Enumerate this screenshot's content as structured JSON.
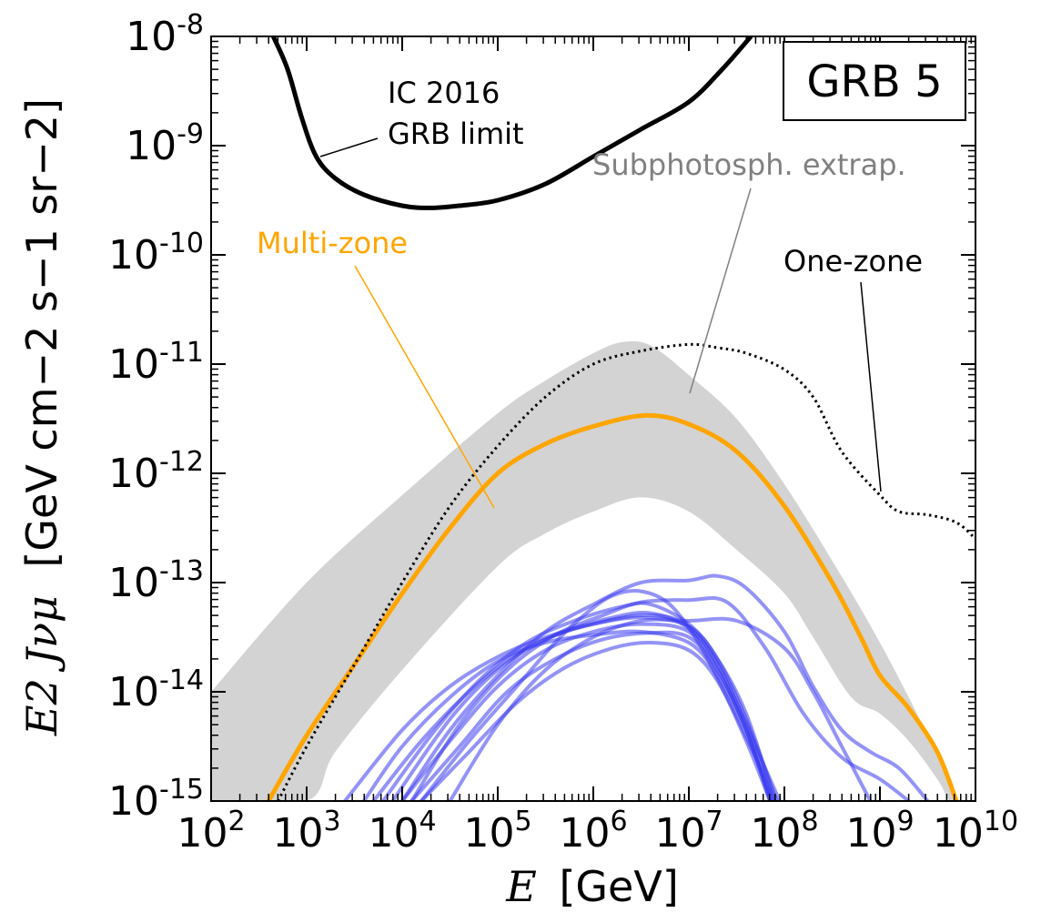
{
  "chart_data": {
    "type": "line",
    "title": "",
    "badge": "GRB 5",
    "xlabel_var": "E",
    "xlabel_unit": "[GeV]",
    "ylabel_var": "E2 Jνμ",
    "ylabel_unit": "[GeV cm−2 s−1 sr−2]",
    "x_scale": "log",
    "y_scale": "log",
    "xlim": [
      100,
      10000000000
    ],
    "ylim": [
      1e-15,
      1e-08
    ],
    "x_ticks": [
      {
        "base": "10",
        "exp": "2",
        "value": 100
      },
      {
        "base": "10",
        "exp": "3",
        "value": 1000
      },
      {
        "base": "10",
        "exp": "4",
        "value": 10000
      },
      {
        "base": "10",
        "exp": "5",
        "value": 100000
      },
      {
        "base": "10",
        "exp": "6",
        "value": 1000000
      },
      {
        "base": "10",
        "exp": "7",
        "value": 10000000
      },
      {
        "base": "10",
        "exp": "8",
        "value": 100000000
      },
      {
        "base": "10",
        "exp": "9",
        "value": 1000000000
      },
      {
        "base": "10",
        "exp": "10",
        "value": 10000000000
      }
    ],
    "y_ticks": [
      {
        "base": "10",
        "exp": "-8",
        "value": 1e-08
      },
      {
        "base": "10",
        "exp": "-9",
        "value": 1e-09
      },
      {
        "base": "10",
        "exp": "-10",
        "value": 1e-10
      },
      {
        "base": "10",
        "exp": "-11",
        "value": 1e-11
      },
      {
        "base": "10",
        "exp": "-12",
        "value": 1e-12
      },
      {
        "base": "10",
        "exp": "-13",
        "value": 1e-13
      },
      {
        "base": "10",
        "exp": "-14",
        "value": 1e-14
      },
      {
        "base": "10",
        "exp": "-15",
        "value": 1e-15
      }
    ],
    "band": {
      "name": "Subphotosph. extrap.",
      "color": "#d3d3d3",
      "upper": [
        [
          2,
          -14.0
        ],
        [
          3,
          -13.0
        ],
        [
          4,
          -12.2
        ],
        [
          5,
          -11.45
        ],
        [
          5.5,
          -11.15
        ],
        [
          6,
          -10.9
        ],
        [
          6.3,
          -10.8
        ],
        [
          6.6,
          -10.83
        ],
        [
          7,
          -11.1
        ],
        [
          7.5,
          -11.5
        ],
        [
          8,
          -12.1
        ],
        [
          8.5,
          -12.8
        ],
        [
          9,
          -13.55
        ],
        [
          9.5,
          -14.4
        ],
        [
          9.8,
          -15.0
        ]
      ],
      "lower": [
        [
          2,
          -15.0
        ],
        [
          3,
          -15.0
        ],
        [
          3.3,
          -14.55
        ],
        [
          4,
          -13.8
        ],
        [
          5,
          -12.85
        ],
        [
          5.5,
          -12.55
        ],
        [
          6,
          -12.35
        ],
        [
          6.5,
          -12.22
        ],
        [
          7,
          -12.35
        ],
        [
          7.5,
          -12.7
        ],
        [
          8,
          -13.1
        ],
        [
          8.3,
          -13.5
        ],
        [
          8.7,
          -14.05
        ],
        [
          9,
          -14.2
        ],
        [
          9.3,
          -14.45
        ],
        [
          9.6,
          -14.8
        ],
        [
          9.72,
          -15.0
        ]
      ]
    },
    "series": [
      {
        "name": "IC 2016 GRB limit",
        "color": "#000000",
        "style": "solid",
        "width": 5,
        "points": [
          [
            2.65,
            -8.0
          ],
          [
            2.8,
            -8.3
          ],
          [
            2.95,
            -8.75
          ],
          [
            3.1,
            -9.1
          ],
          [
            3.3,
            -9.3
          ],
          [
            3.6,
            -9.45
          ],
          [
            4,
            -9.55
          ],
          [
            4.3,
            -9.57
          ],
          [
            4.6,
            -9.55
          ],
          [
            5,
            -9.5
          ],
          [
            5.5,
            -9.35
          ],
          [
            6,
            -9.1
          ],
          [
            6.5,
            -8.85
          ],
          [
            7,
            -8.6
          ],
          [
            7.35,
            -8.3
          ],
          [
            7.65,
            -8.0
          ]
        ]
      },
      {
        "name": "Multi-zone",
        "color": "#ffa500",
        "style": "solid",
        "width": 5,
        "points": [
          [
            2.6,
            -15.0
          ],
          [
            3,
            -14.4
          ],
          [
            3.5,
            -13.75
          ],
          [
            4,
            -13.1
          ],
          [
            4.5,
            -12.5
          ],
          [
            5,
            -12.0
          ],
          [
            5.5,
            -11.73
          ],
          [
            6,
            -11.57
          ],
          [
            6.55,
            -11.47
          ],
          [
            7,
            -11.55
          ],
          [
            7.5,
            -11.8
          ],
          [
            8,
            -12.3
          ],
          [
            8.5,
            -13.0
          ],
          [
            8.8,
            -13.5
          ],
          [
            9,
            -13.85
          ],
          [
            9.3,
            -14.15
          ],
          [
            9.6,
            -14.55
          ],
          [
            9.8,
            -15.0
          ]
        ]
      },
      {
        "name": "One-zone",
        "color": "#000000",
        "style": "dotted",
        "width": 3,
        "points": [
          [
            2.7,
            -15.0
          ],
          [
            3,
            -14.5
          ],
          [
            3.5,
            -13.75
          ],
          [
            4,
            -13.0
          ],
          [
            4.5,
            -12.3
          ],
          [
            5,
            -11.75
          ],
          [
            5.5,
            -11.3
          ],
          [
            6,
            -11.0
          ],
          [
            6.5,
            -10.88
          ],
          [
            7,
            -10.82
          ],
          [
            7.3,
            -10.85
          ],
          [
            7.6,
            -10.9
          ],
          [
            8,
            -11.05
          ],
          [
            8.3,
            -11.3
          ],
          [
            8.6,
            -11.8
          ],
          [
            9,
            -12.2
          ],
          [
            9.2,
            -12.35
          ],
          [
            9.5,
            -12.38
          ],
          [
            9.8,
            -12.45
          ],
          [
            10,
            -12.6
          ]
        ]
      }
    ],
    "blue_curves": {
      "color": "#3b3bf0",
      "opacity": 0.55,
      "width": 4,
      "curves": [
        [
          [
            3.4,
            -15.0
          ],
          [
            4,
            -14.35
          ],
          [
            4.5,
            -13.95
          ],
          [
            5,
            -13.68
          ],
          [
            5.5,
            -13.5
          ],
          [
            6,
            -13.38
          ],
          [
            6.5,
            -13.32
          ],
          [
            7,
            -13.4
          ],
          [
            7.3,
            -13.7
          ],
          [
            7.6,
            -14.2
          ],
          [
            7.9,
            -15.0
          ]
        ],
        [
          [
            3.6,
            -15.0
          ],
          [
            4,
            -14.5
          ],
          [
            4.5,
            -14.05
          ],
          [
            5,
            -13.72
          ],
          [
            5.5,
            -13.55
          ],
          [
            6,
            -13.48
          ],
          [
            6.5,
            -13.45
          ],
          [
            7,
            -13.55
          ],
          [
            7.3,
            -13.85
          ],
          [
            7.6,
            -14.35
          ],
          [
            7.85,
            -15.0
          ]
        ],
        [
          [
            3.7,
            -15.0
          ],
          [
            4.2,
            -14.45
          ],
          [
            4.7,
            -14.0
          ],
          [
            5.2,
            -13.65
          ],
          [
            5.7,
            -13.45
          ],
          [
            6.2,
            -13.32
          ],
          [
            6.6,
            -13.28
          ],
          [
            7,
            -13.42
          ],
          [
            7.3,
            -13.75
          ],
          [
            7.6,
            -14.3
          ],
          [
            7.88,
            -15.0
          ]
        ],
        [
          [
            3.8,
            -15.0
          ],
          [
            4.3,
            -14.4
          ],
          [
            4.8,
            -13.9
          ],
          [
            5.3,
            -13.55
          ],
          [
            5.8,
            -13.35
          ],
          [
            6.3,
            -13.22
          ],
          [
            6.6,
            -13.2
          ],
          [
            7,
            -13.38
          ],
          [
            7.3,
            -13.7
          ],
          [
            7.6,
            -14.25
          ],
          [
            7.92,
            -15.0
          ]
        ],
        [
          [
            3.9,
            -15.0
          ],
          [
            4.5,
            -14.25
          ],
          [
            5,
            -13.8
          ],
          [
            5.5,
            -13.52
          ],
          [
            6,
            -13.38
          ],
          [
            6.5,
            -13.3
          ],
          [
            6.9,
            -13.35
          ],
          [
            7.2,
            -13.6
          ],
          [
            7.5,
            -14.1
          ],
          [
            7.8,
            -14.7
          ],
          [
            7.95,
            -15.0
          ]
        ],
        [
          [
            4.0,
            -15.0
          ],
          [
            4.5,
            -14.45
          ],
          [
            5,
            -13.95
          ],
          [
            5.5,
            -13.62
          ],
          [
            6,
            -13.45
          ],
          [
            6.5,
            -13.38
          ],
          [
            7,
            -13.45
          ],
          [
            7.3,
            -13.8
          ],
          [
            7.6,
            -14.35
          ],
          [
            7.85,
            -15.0
          ]
        ],
        [
          [
            4.1,
            -15.0
          ],
          [
            4.6,
            -14.5
          ],
          [
            5.1,
            -14.0
          ],
          [
            5.6,
            -13.7
          ],
          [
            6.1,
            -13.52
          ],
          [
            6.6,
            -13.46
          ],
          [
            7,
            -13.5
          ],
          [
            7.3,
            -13.8
          ],
          [
            7.6,
            -14.35
          ],
          [
            7.87,
            -15.0
          ]
        ],
        [
          [
            4.2,
            -15.0
          ],
          [
            4.7,
            -14.55
          ],
          [
            5.2,
            -14.1
          ],
          [
            5.7,
            -13.78
          ],
          [
            6.2,
            -13.6
          ],
          [
            6.6,
            -13.55
          ],
          [
            7,
            -13.62
          ],
          [
            7.3,
            -13.9
          ],
          [
            7.6,
            -14.45
          ],
          [
            7.85,
            -15.0
          ]
        ],
        [
          [
            4.2,
            -15.0
          ],
          [
            4.7,
            -14.45
          ],
          [
            5.2,
            -13.95
          ],
          [
            5.6,
            -13.55
          ],
          [
            5.9,
            -13.3
          ],
          [
            6.2,
            -13.12
          ],
          [
            6.5,
            -13.08
          ],
          [
            6.8,
            -13.2
          ],
          [
            7.1,
            -13.55
          ],
          [
            7.4,
            -14.05
          ],
          [
            7.7,
            -14.6
          ],
          [
            7.9,
            -15.0
          ]
        ],
        [
          [
            4.5,
            -15.0
          ],
          [
            5,
            -14.3
          ],
          [
            5.5,
            -13.8
          ],
          [
            6,
            -13.5
          ],
          [
            6.5,
            -13.35
          ],
          [
            7,
            -13.35
          ],
          [
            7.5,
            -13.35
          ],
          [
            8,
            -13.6
          ],
          [
            8.3,
            -14.0
          ],
          [
            8.6,
            -14.5
          ],
          [
            8.9,
            -15.0
          ]
        ],
        [
          [
            4.1,
            -15.0
          ],
          [
            4.6,
            -14.3
          ],
          [
            5.1,
            -13.8
          ],
          [
            5.6,
            -13.48
          ],
          [
            6.1,
            -13.3
          ],
          [
            6.5,
            -13.18
          ],
          [
            7,
            -13.16
          ],
          [
            7.4,
            -13.18
          ],
          [
            7.8,
            -13.6
          ],
          [
            8.2,
            -14.2
          ],
          [
            8.6,
            -14.6
          ],
          [
            9,
            -14.8
          ],
          [
            9.3,
            -15.0
          ]
        ],
        [
          [
            4.0,
            -15.0
          ],
          [
            4.5,
            -14.35
          ],
          [
            5,
            -13.85
          ],
          [
            5.5,
            -13.45
          ],
          [
            6,
            -13.2
          ],
          [
            6.5,
            -13.0
          ],
          [
            7,
            -12.98
          ],
          [
            7.3,
            -12.94
          ],
          [
            7.6,
            -13.05
          ],
          [
            8,
            -13.45
          ],
          [
            8.3,
            -13.95
          ],
          [
            8.6,
            -14.35
          ],
          [
            8.9,
            -14.55
          ],
          [
            9.2,
            -14.7
          ],
          [
            9.5,
            -15.0
          ]
        ]
      ]
    },
    "annotations": [
      {
        "text_lines": [
          "IC 2016",
          "GRB limit"
        ],
        "color": "#000000"
      },
      {
        "text_lines": [
          "Subphotosph. extrap."
        ],
        "color": "#808080"
      },
      {
        "text_lines": [
          "Multi-zone"
        ],
        "color": "#ffa500"
      },
      {
        "text_lines": [
          "One-zone"
        ],
        "color": "#000000"
      }
    ]
  }
}
